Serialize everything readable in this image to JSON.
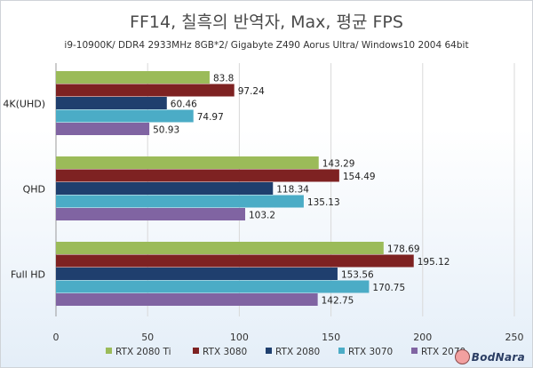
{
  "chart_data": {
    "type": "bar",
    "orientation": "horizontal",
    "title": "FF14, 칠흑의 반역자, Max, 평균 FPS",
    "subtitle": "i9-10900K/ DDR4 2933MHz 8GB*2/ Gigabyte Z490 Aorus Ultra/ Windows10 2004 64bit",
    "categories": [
      "4K(UHD)",
      "QHD",
      "Full HD"
    ],
    "series": [
      {
        "name": "RTX 2080 Ti",
        "color": "#9bbb59",
        "values": [
          83.8,
          143.29,
          178.69
        ]
      },
      {
        "name": "RTX 3080",
        "color": "#7e2222",
        "values": [
          97.24,
          154.49,
          195.12
        ]
      },
      {
        "name": "RTX 2080",
        "color": "#1f3f6e",
        "values": [
          60.46,
          118.34,
          153.56
        ]
      },
      {
        "name": "RTX 3070",
        "color": "#4bacc6",
        "values": [
          74.97,
          135.13,
          170.75
        ]
      },
      {
        "name": "RTX 2070",
        "color": "#8064a2",
        "values": [
          50.93,
          103.2,
          142.75
        ]
      }
    ],
    "value_labels": [
      [
        "83.8",
        "97.24",
        "60.46",
        "74.97",
        "50.93"
      ],
      [
        "143.29",
        "154.49",
        "118.34",
        "135.13",
        "103.2"
      ],
      [
        "178.69",
        "195.12",
        "153.56",
        "170.75",
        "142.75"
      ]
    ],
    "xlim": [
      0,
      250
    ],
    "xticks": [
      "0",
      "50",
      "100",
      "150",
      "200",
      "250"
    ],
    "grid": true,
    "legend": "bottom"
  },
  "watermark": "BodNara"
}
